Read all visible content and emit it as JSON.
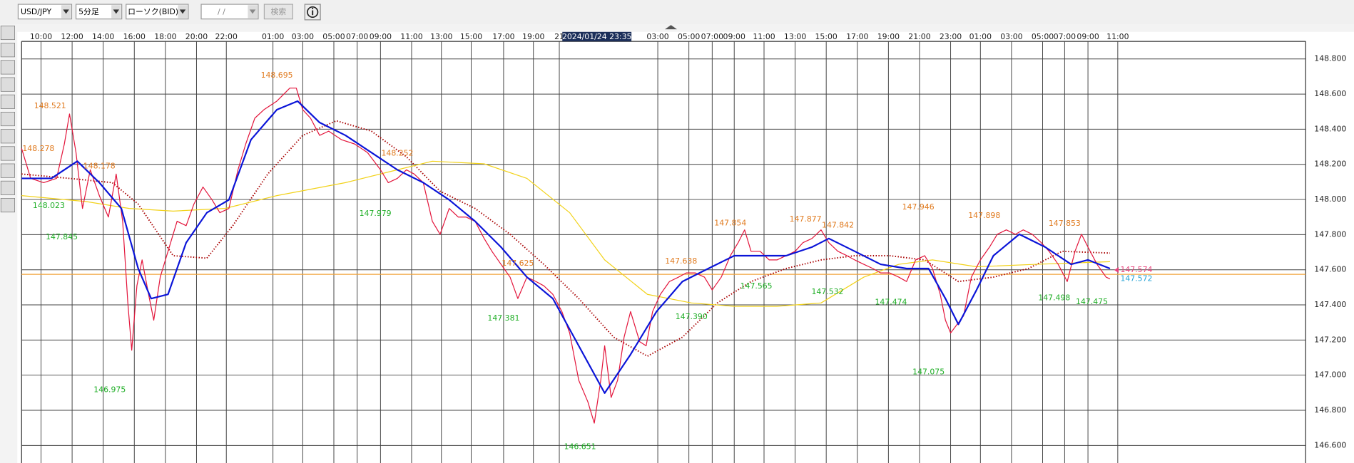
{
  "toolbar": {
    "symbol": "USD/JPY",
    "timeframe": "5分足",
    "chart_kind": "ローソク(BID)",
    "date": " /  /",
    "search": "検索"
  },
  "chart_data": {
    "type": "line",
    "xlim": [
      0,
      991
    ],
    "ylim": [
      146.5,
      148.9
    ],
    "grid": true,
    "xticks": [
      {
        "value": 15,
        "label": "10:00"
      },
      {
        "value": 39,
        "label": "12:00"
      },
      {
        "value": 63,
        "label": "14:00"
      },
      {
        "value": 87,
        "label": "16:00"
      },
      {
        "value": 111,
        "label": "18:00"
      },
      {
        "value": 135,
        "label": "20:00"
      },
      {
        "value": 158,
        "label": "22:00"
      },
      {
        "value": 194,
        "label": "01:00"
      },
      {
        "value": 217,
        "label": "03:00"
      },
      {
        "value": 241,
        "label": "05:00"
      },
      {
        "value": 259,
        "label": "07:00"
      },
      {
        "value": 277,
        "label": "09:00"
      },
      {
        "value": 301,
        "label": "11:00"
      },
      {
        "value": 324,
        "label": "13:00"
      },
      {
        "value": 347,
        "label": "15:00"
      },
      {
        "value": 372,
        "label": "17:00"
      },
      {
        "value": 395,
        "label": "19:00"
      },
      {
        "value": 415,
        "label": "21"
      },
      {
        "value": 491,
        "label": "03:00"
      },
      {
        "value": 515,
        "label": "05:00"
      },
      {
        "value": 533,
        "label": "07:00"
      },
      {
        "value": 550,
        "label": "09:00"
      },
      {
        "value": 573,
        "label": "11:00"
      },
      {
        "value": 597,
        "label": "13:00"
      },
      {
        "value": 621,
        "label": "15:00"
      },
      {
        "value": 645,
        "label": "17:00"
      },
      {
        "value": 669,
        "label": "19:00"
      },
      {
        "value": 693,
        "label": "21:00"
      },
      {
        "value": 717,
        "label": "23:00"
      },
      {
        "value": 740,
        "label": "01:00"
      },
      {
        "value": 764,
        "label": "03:00"
      },
      {
        "value": 788,
        "label": "05:00"
      },
      {
        "value": 805,
        "label": "07:00"
      },
      {
        "value": 823,
        "label": "09:00"
      },
      {
        "value": 846,
        "label": "11:00"
      }
    ],
    "yticks": [
      {
        "value": 146.6,
        "label": "146.600"
      },
      {
        "value": 146.8,
        "label": "146.800"
      },
      {
        "value": 147.0,
        "label": "147.000"
      },
      {
        "value": 147.2,
        "label": "147.200"
      },
      {
        "value": 147.4,
        "label": "147.400"
      },
      {
        "value": 147.6,
        "label": "147.600"
      },
      {
        "value": 147.8,
        "label": "147.800"
      },
      {
        "value": 148.0,
        "label": "148.000"
      },
      {
        "value": 148.2,
        "label": "148.200"
      },
      {
        "value": 148.4,
        "label": "148.400"
      },
      {
        "value": 148.6,
        "label": "148.600"
      },
      {
        "value": 148.8,
        "label": "148.800"
      }
    ],
    "cursor": {
      "x": 444,
      "label": "2024/01/24 23:35"
    },
    "series": [
      {
        "color": "#a80000",
        "line_style": "dotted",
        "x": [
          0,
          37,
          70,
          90,
          117,
          143,
          163,
          190,
          217,
          243,
          270,
          297,
          323,
          350,
          377,
          403,
          430,
          457,
          483,
          510,
          537,
          563,
          590,
          617,
          643,
          670,
          697,
          723,
          750,
          777,
          803,
          840
        ],
        "values": [
          148.145,
          148.12,
          148.096,
          147.974,
          147.68,
          147.666,
          147.851,
          148.145,
          148.365,
          148.448,
          148.389,
          148.243,
          148.047,
          147.949,
          147.802,
          147.631,
          147.436,
          147.216,
          147.108,
          147.216,
          147.411,
          147.533,
          147.607,
          147.656,
          147.68,
          147.68,
          147.656,
          147.533,
          147.558,
          147.607,
          147.705,
          147.695
        ]
      },
      {
        "color": "#f2d21a",
        "line_style": "thin",
        "x": [
          0,
          50,
          83,
          117,
          157,
          197,
          250,
          290,
          317,
          357,
          390,
          423,
          450,
          483,
          517,
          550,
          583,
          617,
          650,
          677,
          703,
          737,
          783,
          840
        ],
        "values": [
          148.022,
          147.988,
          147.949,
          147.934,
          147.949,
          148.022,
          148.096,
          148.169,
          148.218,
          148.203,
          148.12,
          147.925,
          147.656,
          147.46,
          147.411,
          147.392,
          147.392,
          147.411,
          147.558,
          147.631,
          147.656,
          147.617,
          147.631,
          147.646
        ]
      },
      {
        "color": "#e3163c",
        "line_style": "thin",
        "x": [
          0,
          7,
          17,
          27,
          33,
          37,
          42,
          47,
          53,
          60,
          67,
          73,
          78,
          82,
          85,
          89,
          93,
          98,
          102,
          107,
          113,
          120,
          127,
          133,
          140,
          147,
          153,
          160,
          167,
          173,
          180,
          187,
          197,
          207,
          212,
          217,
          223,
          230,
          237,
          247,
          257,
          267,
          277,
          283,
          290,
          297,
          303,
          310,
          317,
          323,
          330,
          337,
          343,
          350,
          357,
          363,
          370,
          377,
          383,
          390,
          397,
          403,
          410,
          417,
          423,
          430,
          437,
          442,
          447,
          450,
          455,
          460,
          465,
          470,
          477,
          482,
          487,
          493,
          500,
          507,
          513,
          520,
          527,
          533,
          540,
          547,
          553,
          558,
          563,
          570,
          577,
          583,
          590,
          597,
          603,
          610,
          617,
          623,
          630,
          637,
          643,
          650,
          657,
          663,
          670,
          677,
          683,
          690,
          697,
          703,
          709,
          713,
          717,
          722,
          727,
          733,
          740,
          747,
          753,
          760,
          767,
          773,
          780,
          787,
          793,
          800,
          807,
          813,
          818,
          823,
          830,
          837,
          840
        ],
        "values": [
          148.291,
          148.12,
          148.096,
          148.12,
          148.316,
          148.487,
          148.267,
          147.949,
          148.169,
          148.022,
          147.9,
          148.145,
          147.876,
          147.411,
          147.142,
          147.509,
          147.656,
          147.46,
          147.313,
          147.558,
          147.705,
          147.876,
          147.851,
          147.974,
          148.071,
          147.998,
          147.925,
          147.949,
          148.169,
          148.316,
          148.463,
          148.511,
          148.56,
          148.634,
          148.634,
          148.511,
          148.463,
          148.365,
          148.389,
          148.34,
          148.316,
          148.267,
          148.169,
          148.096,
          148.12,
          148.169,
          148.145,
          148.096,
          147.876,
          147.802,
          147.949,
          147.9,
          147.9,
          147.876,
          147.778,
          147.705,
          147.631,
          147.558,
          147.436,
          147.558,
          147.533,
          147.509,
          147.46,
          147.362,
          147.24,
          146.971,
          146.849,
          146.727,
          146.971,
          147.167,
          146.873,
          146.971,
          147.216,
          147.362,
          147.191,
          147.167,
          147.362,
          147.46,
          147.533,
          147.558,
          147.582,
          147.582,
          147.558,
          147.485,
          147.558,
          147.68,
          147.754,
          147.827,
          147.705,
          147.705,
          147.656,
          147.656,
          147.68,
          147.705,
          147.754,
          147.778,
          147.827,
          147.754,
          147.705,
          147.68,
          147.656,
          147.631,
          147.607,
          147.582,
          147.582,
          147.558,
          147.533,
          147.656,
          147.68,
          147.607,
          147.46,
          147.313,
          147.24,
          147.289,
          147.338,
          147.558,
          147.656,
          147.729,
          147.802,
          147.827,
          147.802,
          147.827,
          147.802,
          147.754,
          147.705,
          147.631,
          147.533,
          147.705,
          147.802,
          147.729,
          147.631,
          147.558,
          147.548
        ]
      },
      {
        "color": "#0a14d8",
        "line_style": "thick",
        "x": [
          0,
          23,
          43,
          60,
          77,
          90,
          100,
          113,
          127,
          143,
          160,
          177,
          197,
          213,
          230,
          250,
          270,
          290,
          310,
          330,
          350,
          370,
          390,
          410,
          430,
          450,
          470,
          490,
          510,
          530,
          550,
          570,
          590,
          610,
          623,
          643,
          663,
          683,
          700,
          713,
          723,
          737,
          750,
          770,
          790,
          810,
          823,
          840
        ],
        "values": [
          148.12,
          148.12,
          148.218,
          148.096,
          147.949,
          147.607,
          147.436,
          147.46,
          147.754,
          147.925,
          147.998,
          148.34,
          148.511,
          148.56,
          148.438,
          148.365,
          148.267,
          148.169,
          148.096,
          147.998,
          147.876,
          147.729,
          147.558,
          147.436,
          147.167,
          146.898,
          147.118,
          147.362,
          147.533,
          147.607,
          147.68,
          147.68,
          147.68,
          147.729,
          147.778,
          147.705,
          147.631,
          147.607,
          147.607,
          147.436,
          147.289,
          147.485,
          147.68,
          147.802,
          147.729,
          147.631,
          147.656,
          147.607
        ]
      }
    ],
    "highs_color": "#e07a1e",
    "highs": [
      {
        "x": 13,
        "value": 148.278
      },
      {
        "x": 22,
        "value": 148.521
      },
      {
        "x": 60,
        "value": 148.178
      },
      {
        "x": 197,
        "value": 148.695
      },
      {
        "x": 290,
        "value": 148.252
      },
      {
        "x": 383,
        "value": 147.625
      },
      {
        "x": 509,
        "value": 147.638
      },
      {
        "x": 547,
        "value": 147.854
      },
      {
        "x": 605,
        "value": 147.877
      },
      {
        "x": 630,
        "value": 147.842
      },
      {
        "x": 692,
        "value": 147.946
      },
      {
        "x": 743,
        "value": 147.898
      },
      {
        "x": 805,
        "value": 147.853
      }
    ],
    "lows_color": "#1fae26",
    "lows": [
      {
        "x": 21,
        "value": 148.023
      },
      {
        "x": 31,
        "value": 147.845
      },
      {
        "x": 68,
        "value": 146.975
      },
      {
        "x": 273,
        "value": 147.979
      },
      {
        "x": 372,
        "value": 147.381
      },
      {
        "x": 431,
        "value": 146.651
      },
      {
        "x": 517,
        "value": 147.39,
        "label": "147.390"
      },
      {
        "x": 567,
        "value": 147.565
      },
      {
        "x": 622,
        "value": 147.532
      },
      {
        "x": 671,
        "value": 147.474
      },
      {
        "x": 700,
        "value": 147.075
      },
      {
        "x": 797,
        "value": 147.498
      },
      {
        "x": 826,
        "value": 147.475
      }
    ],
    "price_line_color": "#f0a43a",
    "last_values": [
      {
        "value": 147.574,
        "color": "#e8407a"
      },
      {
        "value": 147.572,
        "color": "#25a3d6"
      }
    ]
  }
}
